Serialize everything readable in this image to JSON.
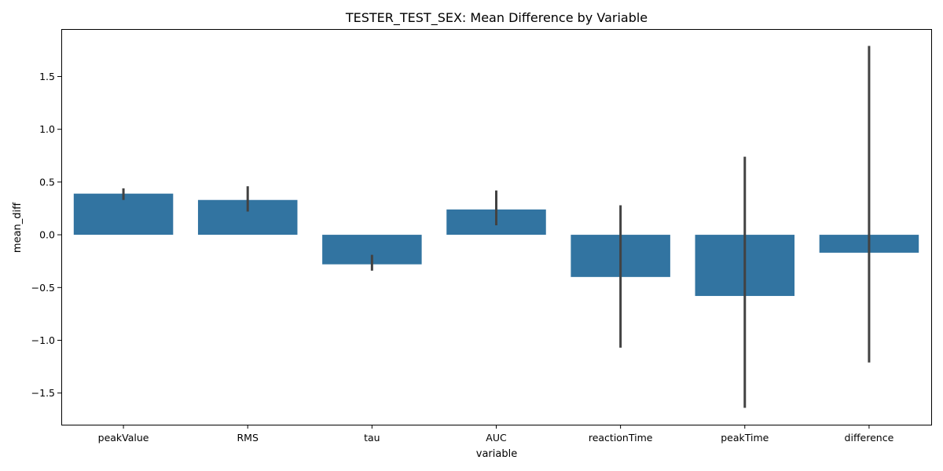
{
  "chart_data": {
    "type": "bar",
    "title": "TESTER_TEST_SEX: Mean Difference by Variable",
    "xlabel": "variable",
    "ylabel": "mean_diff",
    "categories": [
      "peakValue",
      "RMS",
      "tau",
      "AUC",
      "reactionTime",
      "peakTime",
      "difference"
    ],
    "values": [
      0.39,
      0.33,
      -0.28,
      0.24,
      -0.4,
      -0.58,
      -0.17
    ],
    "error_low": [
      0.33,
      0.22,
      -0.34,
      0.09,
      -1.07,
      -1.64,
      -1.21
    ],
    "error_high": [
      0.44,
      0.46,
      -0.19,
      0.42,
      0.28,
      0.74,
      1.79
    ],
    "ylim": [
      -1.8,
      1.95
    ],
    "yticks": [
      1.5,
      1.0,
      0.5,
      0.0,
      -0.5,
      -1.0,
      -1.5
    ],
    "ytick_labels": [
      "1.5",
      "1.0",
      "0.5",
      "0.0",
      "−0.5",
      "−1.0",
      "−1.5"
    ],
    "bar_color": "#3274a1",
    "error_color": "#424242",
    "grid": false,
    "legend": "none"
  }
}
